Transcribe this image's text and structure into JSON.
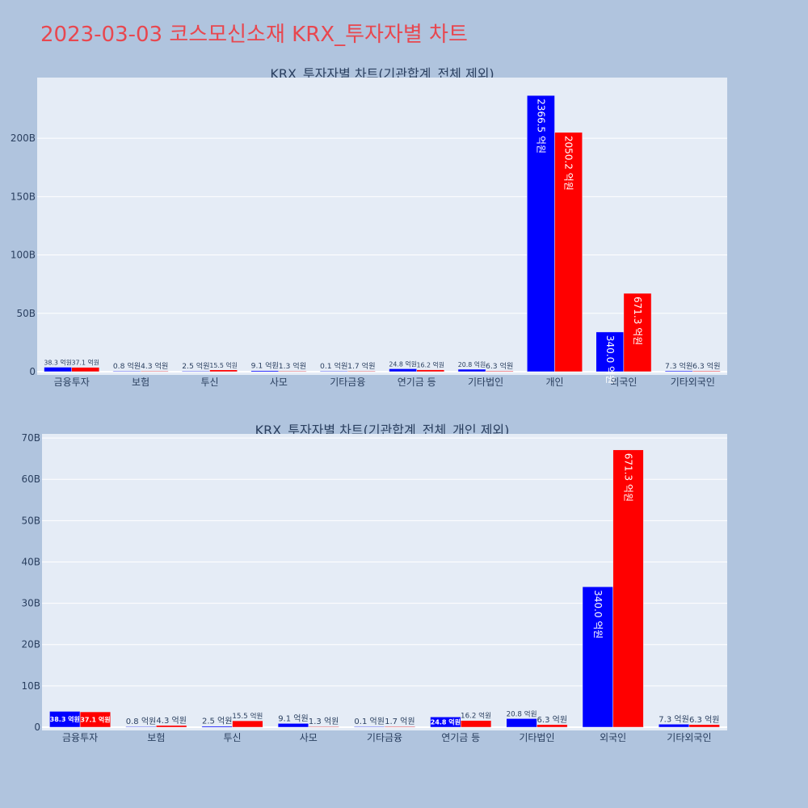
{
  "page": {
    "title": "2023-03-03 코스모신소재 KRX_투자자별 차트",
    "background": "#b0c4de",
    "title_color": "#e8474f"
  },
  "colors": {
    "plot_bg": "#e5ecf6",
    "grid": "#ffffff",
    "axis_text": "#2a3f5f",
    "series_a": "#0000ff",
    "series_b": "#ff0000"
  },
  "chart_data": [
    {
      "type": "bar",
      "title": "KRX_투자자별 차트(기관합계_전체 제외)",
      "xlabel": "",
      "ylabel": "",
      "categories": [
        "금융투자",
        "보험",
        "투신",
        "사모",
        "기타금융",
        "연기금 등",
        "기타법인",
        "개인",
        "외국인",
        "기타외국인"
      ],
      "series": [
        {
          "values": [
            38.3,
            0.8,
            2.5,
            9.1,
            0.1,
            24.8,
            20.8,
            2366.5,
            340.0,
            7.3
          ],
          "labels": [
            "38.3 억원",
            "0.8 억원",
            "2.5 억원",
            "9.1 억원",
            "0.1 억원",
            "24.8 억원",
            "20.8 억원",
            "2366.5 억원",
            "340.0 억원",
            "7.3 억원"
          ]
        },
        {
          "values": [
            37.1,
            4.3,
            15.5,
            1.3,
            1.7,
            16.2,
            6.3,
            2050.2,
            671.3,
            6.3
          ],
          "labels": [
            "37.1 억원",
            "4.3 억원",
            "15.5 억원",
            "1.3 억원",
            "1.7 억원",
            "16.2 억원",
            "6.3 억원",
            "2050.2 억원",
            "671.3 억원",
            "6.3 억원"
          ]
        }
      ],
      "ylim": [
        0,
        2520
      ],
      "yticks": [
        0,
        500,
        1000,
        1500,
        2000
      ],
      "ytick_labels": [
        "0",
        "50B",
        "100B",
        "150B",
        "200B"
      ],
      "grid": true,
      "legend": "none"
    },
    {
      "type": "bar",
      "title": "KRX_투자자별 차트(기관합계_전체_개인 제외)",
      "xlabel": "",
      "ylabel": "",
      "categories": [
        "금융투자",
        "보험",
        "투신",
        "사모",
        "기타금융",
        "연기금 등",
        "기타법인",
        "외국인",
        "기타외국인"
      ],
      "series": [
        {
          "values": [
            38.3,
            0.8,
            2.5,
            9.1,
            0.1,
            24.8,
            20.8,
            340.0,
            7.3
          ],
          "labels": [
            "38.3 억원",
            "0.8 억원",
            "2.5 억원",
            "9.1 억원",
            "0.1 억원",
            "24.8 억원",
            "20.8 억원",
            "340.0 억원",
            "7.3 억원"
          ]
        },
        {
          "values": [
            37.1,
            4.3,
            15.5,
            1.3,
            1.7,
            16.2,
            6.3,
            671.3,
            6.3
          ],
          "labels": [
            "37.1 억원",
            "4.3 억원",
            "15.5 억원",
            "1.3 억원",
            "1.7 억원",
            "16.2 억원",
            "6.3 억원",
            "671.3 억원",
            "6.3 억원"
          ]
        }
      ],
      "ylim": [
        0,
        710
      ],
      "yticks": [
        0,
        100,
        200,
        300,
        400,
        500,
        600,
        700
      ],
      "ytick_labels": [
        "0",
        "10B",
        "20B",
        "30B",
        "40B",
        "50B",
        "60B",
        "70B"
      ],
      "grid": true,
      "legend": "none"
    }
  ]
}
